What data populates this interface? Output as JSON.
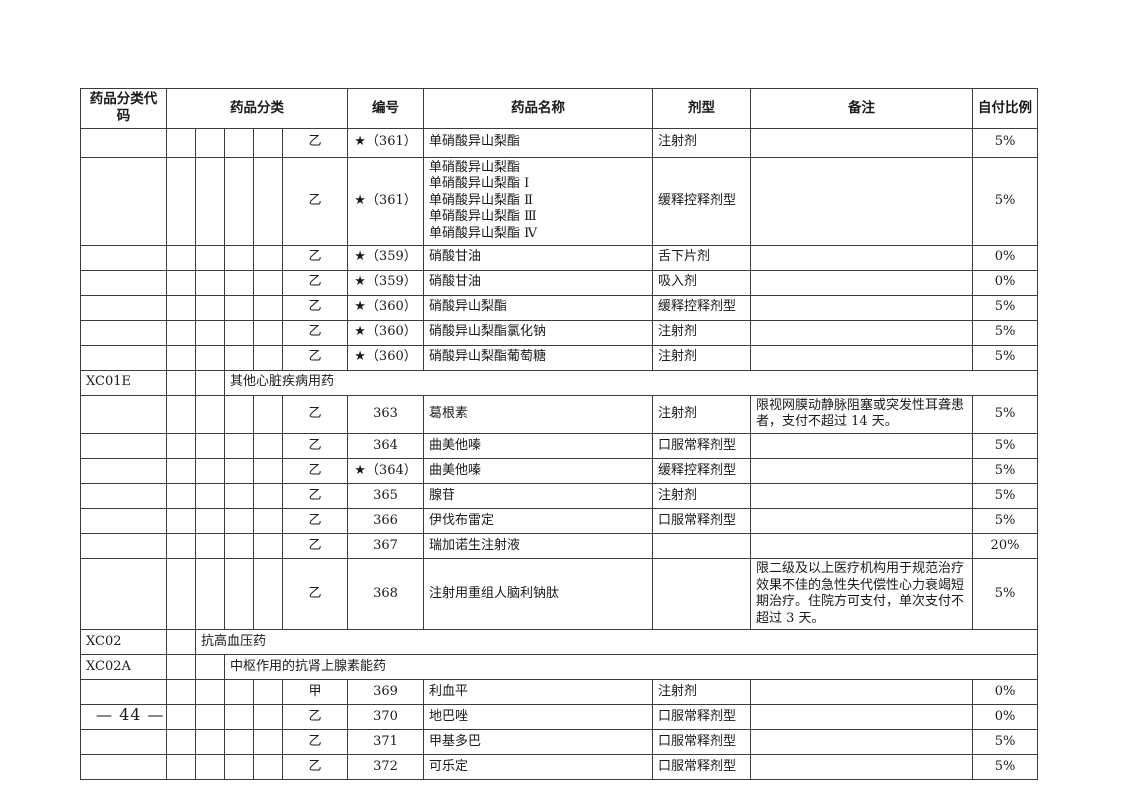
{
  "page": {
    "footer_label": "— 44 —"
  },
  "table": {
    "headers": {
      "code": "药品分类代码",
      "class": "药品分类",
      "no": "编号",
      "name": "药品名称",
      "form": "剂型",
      "remark": "备注",
      "ratio": "自付比例"
    },
    "rows": [
      {
        "type": "drug",
        "category": "乙",
        "no": "★（361）",
        "name": "单硝酸异山梨酯",
        "form": "注射剂",
        "remark": "",
        "ratio": "5%"
      },
      {
        "type": "drug",
        "category": "乙",
        "no": "★（361）",
        "name": "单硝酸异山梨酯\n单硝酸异山梨酯 Ⅰ\n单硝酸异山梨酯 Ⅱ\n单硝酸异山梨酯 Ⅲ\n单硝酸异山梨酯 Ⅳ",
        "form": "缓释控释剂型",
        "remark": "",
        "ratio": "5%"
      },
      {
        "type": "drug",
        "category": "乙",
        "no": "★（359）",
        "name": "硝酸甘油",
        "form": "舌下片剂",
        "remark": "",
        "ratio": "0%"
      },
      {
        "type": "drug",
        "category": "乙",
        "no": "★（359）",
        "name": "硝酸甘油",
        "form": "吸入剂",
        "remark": "",
        "ratio": "0%"
      },
      {
        "type": "drug",
        "category": "乙",
        "no": "★（360）",
        "name": "硝酸异山梨酯",
        "form": "缓释控释剂型",
        "remark": "",
        "ratio": "5%"
      },
      {
        "type": "drug",
        "category": "乙",
        "no": "★（360）",
        "name": "硝酸异山梨酯氯化钠",
        "form": "注射剂",
        "remark": "",
        "ratio": "5%"
      },
      {
        "type": "drug",
        "category": "乙",
        "no": "★（360）",
        "name": "硝酸异山梨酯葡萄糖",
        "form": "注射剂",
        "remark": "",
        "ratio": "5%"
      },
      {
        "type": "section",
        "code": "XC01E",
        "level": 3,
        "label": "其他心脏疾病用药"
      },
      {
        "type": "drug",
        "category": "乙",
        "no": "363",
        "name": "葛根素",
        "form": "注射剂",
        "remark": "限视网膜动静脉阻塞或突发性耳聋患者，支付不超过 14 天。",
        "ratio": "5%"
      },
      {
        "type": "drug",
        "category": "乙",
        "no": "364",
        "name": "曲美他嗪",
        "form": "口服常释剂型",
        "remark": "",
        "ratio": "5%"
      },
      {
        "type": "drug",
        "category": "乙",
        "no": "★（364）",
        "name": "曲美他嗪",
        "form": "缓释控释剂型",
        "remark": "",
        "ratio": "5%"
      },
      {
        "type": "drug",
        "category": "乙",
        "no": "365",
        "name": "腺苷",
        "form": "注射剂",
        "remark": "",
        "ratio": "5%"
      },
      {
        "type": "drug",
        "category": "乙",
        "no": "366",
        "name": "伊伐布雷定",
        "form": "口服常释剂型",
        "remark": "",
        "ratio": "5%"
      },
      {
        "type": "drug",
        "category": "乙",
        "no": "367",
        "name": "瑞加诺生注射液",
        "form": "",
        "remark": "",
        "ratio": "20%"
      },
      {
        "type": "drug",
        "category": "乙",
        "no": "368",
        "name": "注射用重组人脑利钠肽",
        "form": "",
        "remark": "限二级及以上医疗机构用于规范治疗效果不佳的急性失代偿性心力衰竭短期治疗。住院方可支付，单次支付不超过 3 天。",
        "ratio": "5%"
      },
      {
        "type": "section",
        "code": "XC02",
        "level": 2,
        "label": "抗高血压药"
      },
      {
        "type": "section",
        "code": "XC02A",
        "level": 3,
        "label": "中枢作用的抗肾上腺素能药"
      },
      {
        "type": "drug",
        "category": "甲",
        "no": "369",
        "name": "利血平",
        "form": "注射剂",
        "remark": "",
        "ratio": "0%"
      },
      {
        "type": "drug",
        "category": "乙",
        "no": "370",
        "name": "地巴唑",
        "form": "口服常释剂型",
        "remark": "",
        "ratio": "0%"
      },
      {
        "type": "drug",
        "category": "乙",
        "no": "371",
        "name": "甲基多巴",
        "form": "口服常释剂型",
        "remark": "",
        "ratio": "5%"
      },
      {
        "type": "drug",
        "category": "乙",
        "no": "372",
        "name": "可乐定",
        "form": "口服常释剂型",
        "remark": "",
        "ratio": "5%"
      }
    ]
  }
}
